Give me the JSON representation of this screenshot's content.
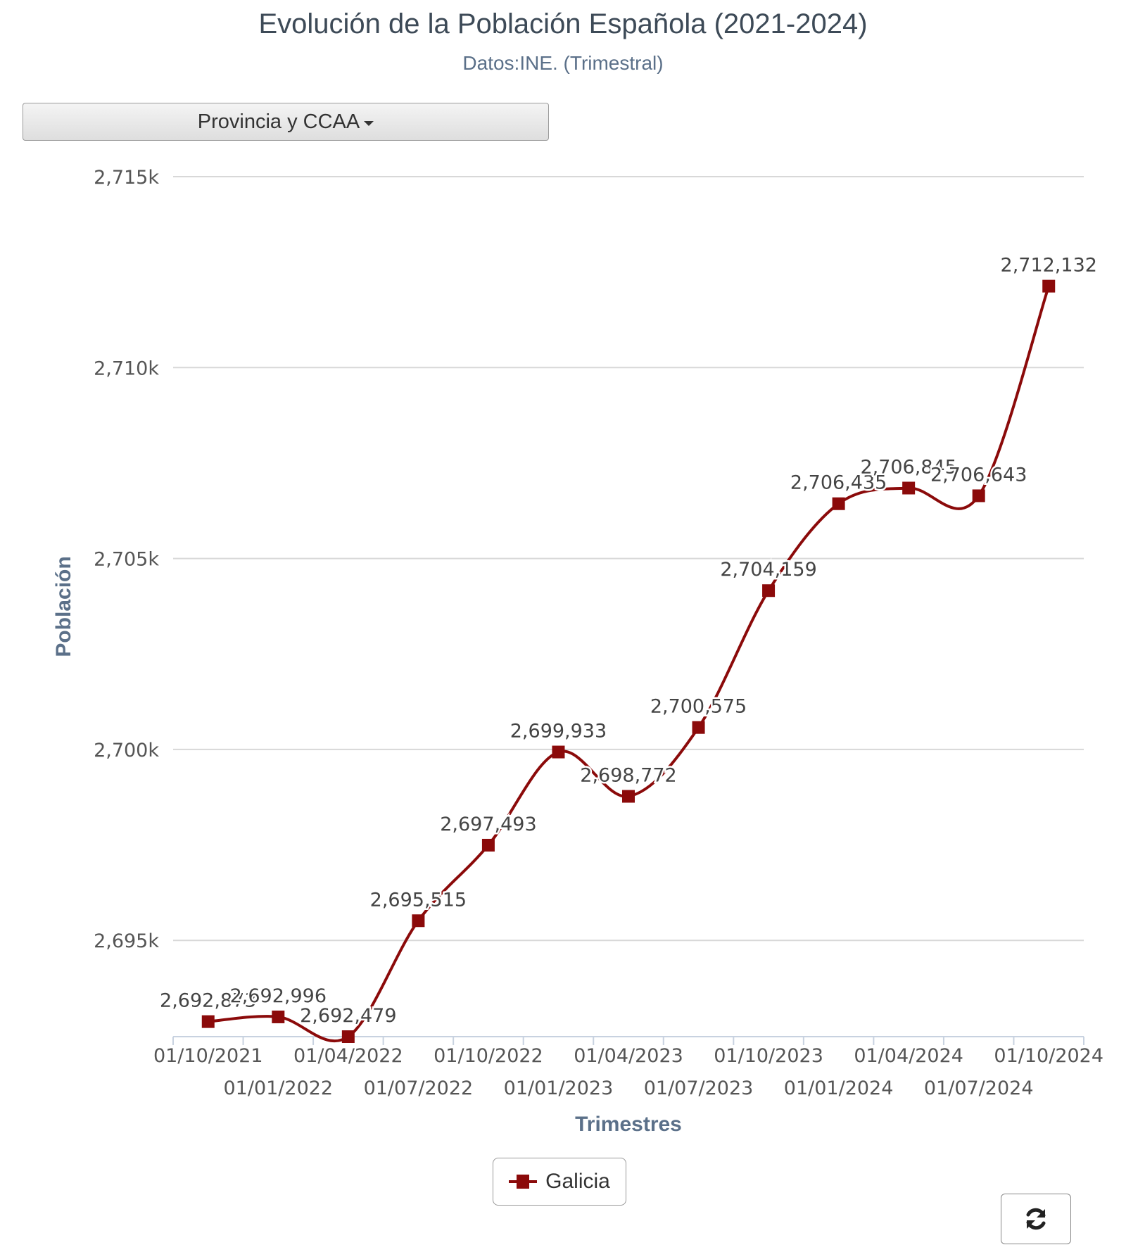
{
  "header": {
    "title": "Evolución de la Población Española (2021-2024)",
    "subtitle": "Datos:INE. (Trimestral)"
  },
  "controls": {
    "dropdown_label": "Provincia y CCAA",
    "dropdown_icon": "caret-down-icon",
    "refresh_icon": "refresh-icon"
  },
  "legend": {
    "label": "Galicia"
  },
  "colors": {
    "series": "#8b0a0a",
    "grid": "#d8d8d8",
    "axis_title": "#5b7089",
    "tick": "#555555"
  },
  "chart_data": {
    "type": "line",
    "smoothed": true,
    "title": "Evolución de la Población Española (2021-2024)",
    "subtitle": "Datos:INE. (Trimestral)",
    "xlabel": "Trimestres",
    "ylabel": "Población",
    "ylim": [
      2692479,
      2715000
    ],
    "y_ticks": [
      2695000,
      2700000,
      2705000,
      2710000,
      2715000
    ],
    "y_tick_labels": [
      "2,695k",
      "2,700k",
      "2,705k",
      "2,710k",
      "2,715k"
    ],
    "x_tick_labels_row1": [
      "01/10/2021",
      "01/04/2022",
      "01/10/2022",
      "01/04/2023",
      "01/10/2023",
      "01/04/2024",
      "01/10/2024"
    ],
    "x_tick_labels_row2": [
      "01/01/2022",
      "01/07/2022",
      "01/01/2023",
      "01/07/2023",
      "01/01/2024",
      "01/07/2024"
    ],
    "grid": true,
    "legend_position": "bottom-center",
    "categories": [
      "01/10/2021",
      "01/01/2022",
      "01/04/2022",
      "01/07/2022",
      "01/10/2022",
      "01/01/2023",
      "01/04/2023",
      "01/07/2023",
      "01/10/2023",
      "01/01/2024",
      "01/04/2024",
      "01/07/2024",
      "01/10/2024"
    ],
    "series": [
      {
        "name": "Galicia",
        "values": [
          2692873,
          2692996,
          2692479,
          2695515,
          2697493,
          2699933,
          2698772,
          2700575,
          2704159,
          2706435,
          2706845,
          2706643,
          2712132
        ],
        "labels": [
          "2,692,873",
          "2,692,996",
          "2,692,479",
          "2,695,515",
          "2,697,493",
          "2,699,933",
          "2,698,772",
          "2,700,575",
          "2,704,159",
          "2,706,435",
          "2,706,845",
          "2,706,643",
          "2,712,132"
        ]
      }
    ]
  }
}
